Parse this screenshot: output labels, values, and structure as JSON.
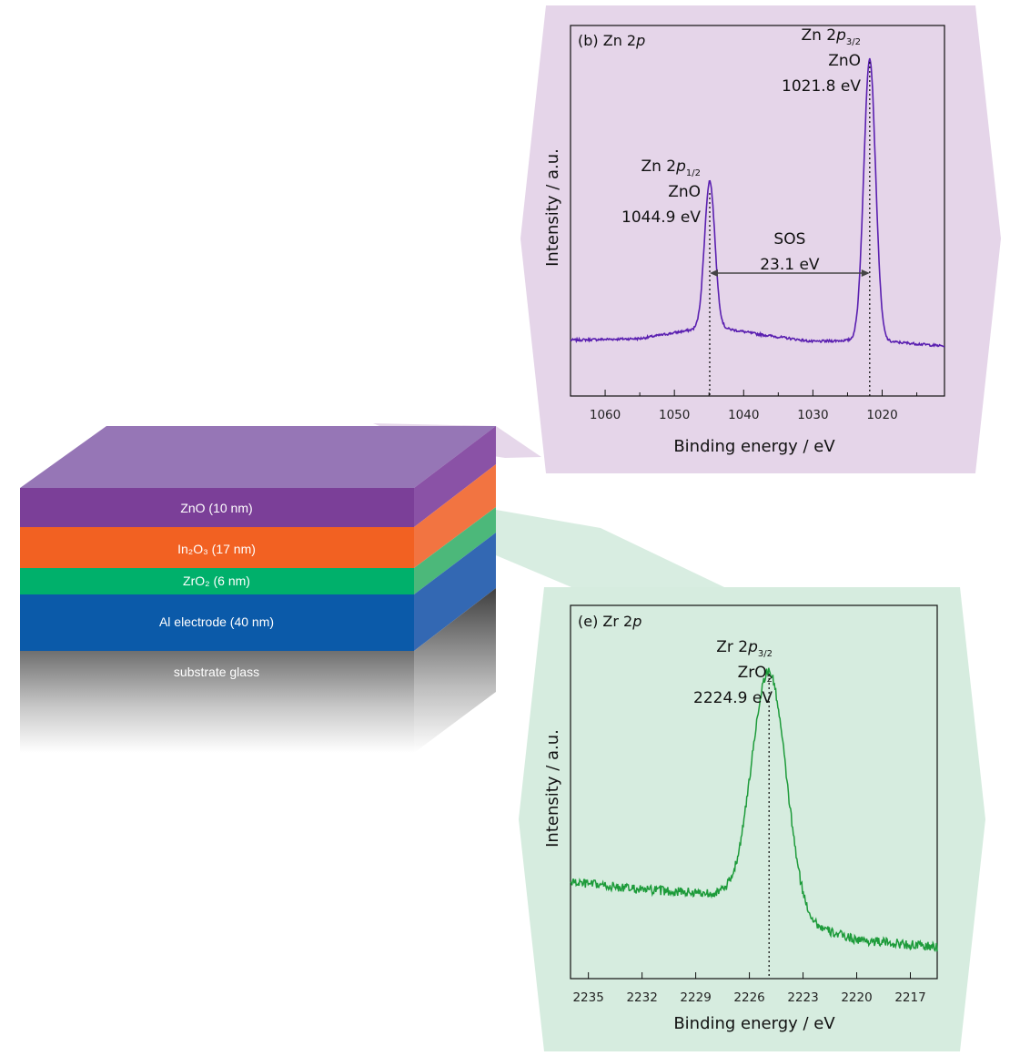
{
  "stack": {
    "layers": [
      {
        "label": "ZnO (10 nm)",
        "color": "#7b3f98"
      },
      {
        "label": "In₂O₃ (17 nm)",
        "color": "#f26122"
      },
      {
        "label": "ZrO₂ (6 nm)",
        "color": "#00b06b"
      },
      {
        "label": "Al electrode (40 nm)",
        "color": "#0b5aa9"
      },
      {
        "label": "substrate glass",
        "color": "#8a8a8a"
      }
    ]
  },
  "colors": {
    "zn_panel_bg": "#e5d5e9",
    "zr_panel_bg": "#d6ecdf",
    "zn_trace": "#5a1fb0",
    "zr_trace": "#1d9b3a"
  },
  "chart_data": [
    {
      "type": "line",
      "panel": "(b)",
      "title": "(b) Zn 2p",
      "title_parts": {
        "prefix": "(b) Zn 2",
        "italic": "p"
      },
      "xlabel": "Binding energy / eV",
      "ylabel": "Intensity / a.u.",
      "x_reversed": true,
      "xlim": [
        1065,
        1011
      ],
      "ylim": [
        0,
        1
      ],
      "xticks": [
        1060,
        1050,
        1040,
        1030,
        1020
      ],
      "minor_xticks": [
        1055,
        1045,
        1035,
        1025,
        1015
      ],
      "peaks": [
        {
          "center": 1044.9,
          "height": 0.49,
          "width": 0.75
        },
        {
          "center": 1021.8,
          "height": 0.94,
          "width": 0.85
        }
      ],
      "background": [
        [
          1065,
          0.08
        ],
        [
          1055,
          0.085
        ],
        [
          1046,
          0.12
        ],
        [
          1043,
          0.12
        ],
        [
          1038,
          0.1
        ],
        [
          1030,
          0.075
        ],
        [
          1024,
          0.08
        ],
        [
          1019,
          0.075
        ],
        [
          1011,
          0.06
        ]
      ],
      "annotations": [
        {
          "lines": [
            "Zn 2p3/2",
            "ZnO",
            "1021.8 eV"
          ],
          "name_parts": {
            "prefix": "Zn 2",
            "italic": "p",
            "sub": "3/2"
          },
          "compound": "ZnO",
          "energy_text": "1021.8 eV",
          "x": 1021.8
        },
        {
          "lines": [
            "Zn 2p1/2",
            "ZnO",
            "1044.9 eV"
          ],
          "name_parts": {
            "prefix": "Zn 2",
            "italic": "p",
            "sub": "1/2"
          },
          "compound": "ZnO",
          "energy_text": "1044.9 eV",
          "x": 1044.9
        }
      ],
      "splitting": {
        "label": "SOS",
        "value_text": "23.1 eV",
        "from": 1044.9,
        "to": 1021.8
      }
    },
    {
      "type": "line",
      "panel": "(e)",
      "title": "(e) Zr 2p",
      "title_parts": {
        "prefix": "(e) Zr 2",
        "italic": "p"
      },
      "xlabel": "Binding energy / eV",
      "ylabel": "Intensity / a.u.",
      "x_reversed": true,
      "xlim": [
        2236,
        2215.5
      ],
      "ylim": [
        0,
        1
      ],
      "xticks": [
        2235,
        2232,
        2229,
        2226,
        2223,
        2220,
        2217
      ],
      "peaks": [
        {
          "center": 2224.9,
          "height": 0.62,
          "width": 0.95
        }
      ],
      "background": [
        [
          2236,
          0.23
        ],
        [
          2232,
          0.21
        ],
        [
          2228,
          0.2
        ],
        [
          2226,
          0.18
        ],
        [
          2223,
          0.12
        ],
        [
          2220,
          0.08
        ],
        [
          2215.5,
          0.06
        ]
      ],
      "annotations": [
        {
          "lines": [
            "Zr 2p3/2",
            "ZrO2",
            "2224.9 eV"
          ],
          "name_parts": {
            "prefix": "Zr 2",
            "italic": "p",
            "sub": "3/2"
          },
          "compound_parts": {
            "prefix": "ZrO",
            "sub": "2"
          },
          "energy_text": "2224.9 eV",
          "x": 2224.9
        }
      ]
    }
  ]
}
